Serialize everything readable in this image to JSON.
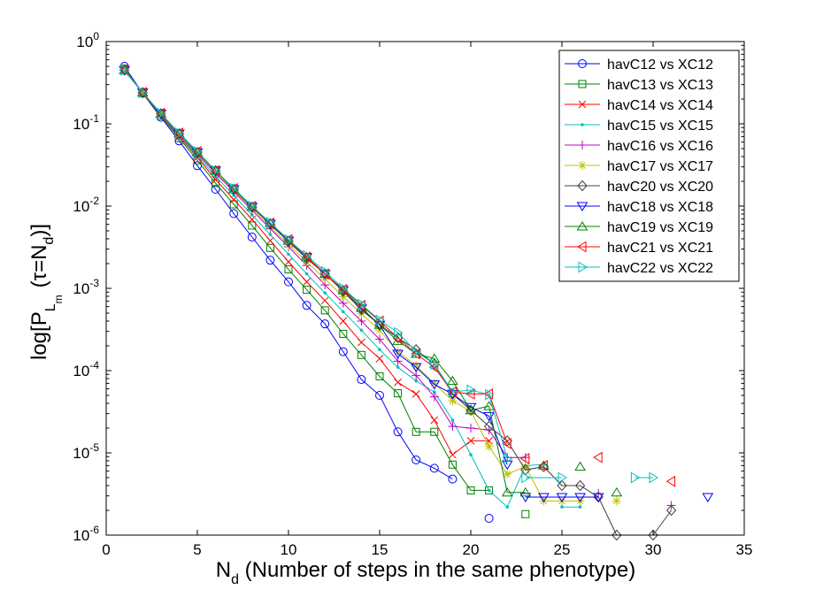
{
  "chart_data": {
    "type": "line",
    "title": "",
    "xlabel": {
      "base": "N",
      "sub": "d",
      "rest": " (Number of steps in the same phenotype)"
    },
    "ylabel": {
      "p1": "log[P",
      "sub1": "L",
      "subsub": "m",
      "p2": "(τ=N",
      "sub2": "d",
      "p3": ")]"
    },
    "xlim": [
      0,
      35
    ],
    "xticks": [
      0,
      5,
      10,
      15,
      20,
      25,
      30,
      35
    ],
    "xtick_labels": [
      "0",
      "5",
      "10",
      "15",
      "20",
      "25",
      "30",
      "35"
    ],
    "ylim": [
      1e-06,
      1
    ],
    "yscale": "log",
    "yticks": [
      1e-06,
      1e-05,
      0.0001,
      0.001,
      0.01,
      0.1,
      1
    ],
    "ytick_labels": [
      {
        "base": "10",
        "exp": "-6"
      },
      {
        "base": "10",
        "exp": "-5"
      },
      {
        "base": "10",
        "exp": "-4"
      },
      {
        "base": "10",
        "exp": "-3"
      },
      {
        "base": "10",
        "exp": "-2"
      },
      {
        "base": "10",
        "exp": "-1"
      },
      {
        "base": "10",
        "exp": "0"
      }
    ],
    "grid": false,
    "legend_position": "top-right",
    "series": [
      {
        "name": "havC12 vs XC12",
        "color": "#0000ff",
        "marker": "circle",
        "x": [
          1,
          2,
          3,
          4,
          5,
          6,
          7,
          8,
          9,
          10,
          11,
          12,
          13,
          14,
          15,
          16,
          17,
          18,
          19,
          21
        ],
        "y": [
          0.5,
          0.235,
          0.12,
          0.062,
          0.031,
          0.016,
          0.0081,
          0.0042,
          0.0022,
          0.0012,
          0.00062,
          0.00037,
          0.00017,
          7.8e-05,
          5e-05,
          1.8e-05,
          8.2e-06,
          6.5e-06,
          4.8e-06,
          1.6e-06
        ],
        "breaks_after": [
          18
        ]
      },
      {
        "name": "havC13 vs XC13",
        "color": "#008000",
        "marker": "square",
        "x": [
          1,
          2,
          3,
          4,
          5,
          6,
          7,
          8,
          9,
          10,
          11,
          12,
          13,
          14,
          15,
          16,
          17,
          18,
          19,
          20,
          21,
          23
        ],
        "y": [
          0.47,
          0.235,
          0.125,
          0.067,
          0.036,
          0.019,
          0.0105,
          0.0058,
          0.0031,
          0.0017,
          0.00096,
          0.00054,
          0.00028,
          0.000155,
          8.5e-05,
          5.3e-05,
          1.8e-05,
          1.8e-05,
          7.2e-06,
          3.5e-06,
          3.5e-06,
          1.8e-06
        ],
        "breaks_after": [
          20
        ]
      },
      {
        "name": "havC14 vs XC14",
        "color": "#ff0000",
        "marker": "x",
        "x": [
          1,
          2,
          3,
          4,
          5,
          6,
          7,
          8,
          9,
          10,
          11,
          12,
          13,
          14,
          15,
          16,
          17,
          18,
          19,
          20,
          21
        ],
        "y": [
          0.45,
          0.238,
          0.128,
          0.07,
          0.039,
          0.021,
          0.012,
          0.0069,
          0.0038,
          0.0021,
          0.0012,
          0.00071,
          0.0004,
          0.00022,
          0.00014,
          7.2e-05,
          5.2e-05,
          2.5e-05,
          9.5e-06,
          1.4e-05,
          1.4e-05
        ],
        "breaks_after": []
      },
      {
        "name": "havC15 vs XC15",
        "color": "#00bfbf",
        "marker": "dot",
        "x": [
          1,
          2,
          3,
          4,
          5,
          6,
          7,
          8,
          9,
          10,
          11,
          12,
          13,
          14,
          15,
          16,
          17,
          18,
          19,
          20,
          21,
          22,
          23,
          24,
          25,
          26
        ],
        "y": [
          0.44,
          0.24,
          0.13,
          0.072,
          0.041,
          0.023,
          0.0135,
          0.0078,
          0.0045,
          0.0026,
          0.0015,
          0.00088,
          0.00052,
          0.00031,
          0.00018,
          0.00011,
          7.5e-05,
          5.5e-05,
          2.5e-05,
          9.5e-06,
          3.5e-06,
          2.2e-06,
          7e-06,
          7.2e-06,
          2.2e-06,
          2.2e-06
        ],
        "breaks_after": [
          23
        ]
      },
      {
        "name": "havC16 vs XC16",
        "color": "#bf00bf",
        "marker": "plus",
        "x": [
          1,
          2,
          3,
          4,
          5,
          6,
          7,
          8,
          9,
          10,
          11,
          12,
          13,
          14,
          15,
          16,
          17,
          18,
          19,
          20,
          21,
          22,
          23,
          27,
          31
        ],
        "y": [
          0.45,
          0.24,
          0.132,
          0.074,
          0.043,
          0.025,
          0.015,
          0.0089,
          0.0053,
          0.0032,
          0.0019,
          0.0011,
          0.00066,
          0.0004,
          0.00024,
          0.00013,
          8.7e-05,
          4.8e-05,
          2.1e-05,
          2e-05,
          1.9e-05,
          8.8e-06,
          8.8e-06,
          3.2e-06,
          2.3e-06
        ],
        "breaks_after": [
          22,
          23
        ]
      },
      {
        "name": "havC17 vs XC17",
        "color": "#bfbf00",
        "marker": "asterisk",
        "x": [
          1,
          2,
          3,
          4,
          5,
          6,
          7,
          8,
          9,
          10,
          11,
          12,
          13,
          14,
          15,
          16,
          17,
          18,
          19,
          20,
          21,
          22,
          23,
          24,
          25,
          26,
          28
        ],
        "y": [
          0.45,
          0.24,
          0.133,
          0.075,
          0.044,
          0.026,
          0.0155,
          0.0093,
          0.0056,
          0.0034,
          0.0021,
          0.0013,
          0.00079,
          0.00049,
          0.00031,
          0.00017,
          0.000115,
          7e-05,
          4.3e-05,
          3.2e-05,
          1.2e-05,
          5.5e-06,
          6.8e-06,
          2.6e-06,
          2.6e-06,
          2.6e-06,
          2.6e-06
        ],
        "breaks_after": [
          25
        ]
      },
      {
        "name": "havC20 vs XC20",
        "color": "#404040",
        "marker": "diamond",
        "x": [
          1,
          2,
          3,
          4,
          5,
          6,
          7,
          8,
          9,
          10,
          11,
          12,
          13,
          14,
          15,
          16,
          17,
          18,
          19,
          20,
          21,
          22,
          23,
          24,
          25,
          26,
          27,
          28,
          30,
          31
        ],
        "y": [
          0.45,
          0.24,
          0.133,
          0.076,
          0.045,
          0.027,
          0.016,
          0.0097,
          0.006,
          0.0037,
          0.0023,
          0.0015,
          0.00092,
          0.00055,
          0.00036,
          0.00025,
          0.00018,
          0.00012,
          5.2e-05,
          3.3e-05,
          2.1e-05,
          1.4e-05,
          6.2e-06,
          6.8e-06,
          4e-06,
          4e-06,
          2.9e-06,
          1e-06,
          1e-06,
          2e-06
        ],
        "breaks_after": [
          27
        ]
      },
      {
        "name": "havC18 vs XC18",
        "color": "#0000ff",
        "marker": "triangle-down",
        "x": [
          1,
          2,
          3,
          4,
          5,
          6,
          7,
          8,
          9,
          10,
          11,
          12,
          13,
          14,
          15,
          16,
          17,
          18,
          19,
          20,
          21,
          22,
          23,
          24,
          25,
          26,
          27,
          33
        ],
        "y": [
          0.45,
          0.24,
          0.133,
          0.076,
          0.045,
          0.027,
          0.016,
          0.0098,
          0.0061,
          0.0038,
          0.0024,
          0.0015,
          0.00095,
          0.00057,
          0.00036,
          0.00016,
          0.00011,
          6.8e-05,
          5.2e-05,
          3.6e-05,
          2.8e-05,
          7.2e-06,
          2.9e-06,
          2.9e-06,
          2.9e-06,
          2.9e-06,
          2.9e-06,
          2.9e-06
        ],
        "breaks_after": [
          21,
          26
        ]
      },
      {
        "name": "havC19 vs XC19",
        "color": "#008000",
        "marker": "triangle-up",
        "x": [
          1,
          2,
          3,
          4,
          5,
          6,
          7,
          8,
          9,
          10,
          11,
          12,
          13,
          14,
          15,
          16,
          17,
          18,
          19,
          20,
          21,
          22,
          23,
          24,
          26,
          28
        ],
        "y": [
          0.45,
          0.24,
          0.133,
          0.076,
          0.045,
          0.027,
          0.016,
          0.0098,
          0.0062,
          0.0038,
          0.0024,
          0.0015,
          0.00095,
          0.00058,
          0.00036,
          0.00023,
          0.00016,
          0.00014,
          7.5e-05,
          3.3e-05,
          3.7e-05,
          3.3e-06,
          3.3e-06,
          7e-06,
          6.8e-06,
          3.3e-06
        ],
        "breaks_after": [
          22,
          23,
          24
        ]
      },
      {
        "name": "havC21 vs XC21",
        "color": "#ff0000",
        "marker": "triangle-left",
        "x": [
          1,
          2,
          3,
          4,
          5,
          6,
          7,
          8,
          9,
          10,
          11,
          12,
          13,
          14,
          15,
          16,
          17,
          18,
          19,
          20,
          21,
          22,
          23,
          24,
          27,
          31
        ],
        "y": [
          0.45,
          0.24,
          0.134,
          0.077,
          0.046,
          0.027,
          0.0163,
          0.0099,
          0.0062,
          0.0039,
          0.0024,
          0.0015,
          0.00097,
          0.00062,
          0.0004,
          0.00025,
          0.00016,
          0.00011,
          5.5e-05,
          5.2e-05,
          5.2e-05,
          1.3e-05,
          8.5e-06,
          7e-06,
          8.8e-06,
          4.5e-06
        ],
        "breaks_after": [
          21,
          22,
          23,
          24
        ]
      },
      {
        "name": "havC22 vs XC22",
        "color": "#00bfbf",
        "marker": "triangle-right",
        "x": [
          1,
          2,
          3,
          4,
          5,
          6,
          7,
          8,
          9,
          10,
          11,
          12,
          13,
          14,
          15,
          16,
          17,
          18,
          19,
          20,
          21,
          22,
          23,
          25,
          29,
          30
        ],
        "y": [
          0.45,
          0.24,
          0.134,
          0.077,
          0.046,
          0.027,
          0.0164,
          0.01,
          0.0063,
          0.0039,
          0.0025,
          0.0016,
          0.001,
          0.00064,
          0.00041,
          0.00029,
          0.00017,
          0.00012,
          5.5e-05,
          5.8e-05,
          5.1e-05,
          8.5e-06,
          5e-06,
          5e-06,
          5e-06,
          5e-06
        ],
        "breaks_after": [
          21,
          23
        ]
      }
    ]
  }
}
